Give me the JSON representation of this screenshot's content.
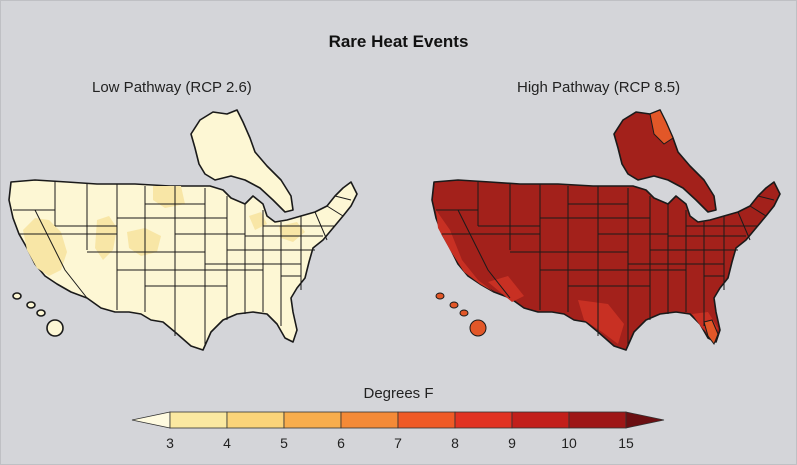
{
  "title": "Rare Heat Events",
  "panels": [
    {
      "label": "Low Pathway (RCP 2.6)",
      "palette": "light"
    },
    {
      "label": "High Pathway (RCP 8.5)",
      "palette": "dark"
    }
  ],
  "legend": {
    "title": "Degrees F",
    "ticks": [
      "3",
      "4",
      "5",
      "6",
      "7",
      "8",
      "9",
      "10",
      "15"
    ],
    "colors": [
      "#fffbe0",
      "#fbe9a1",
      "#fbd479",
      "#f8ad4c",
      "#f48a37",
      "#ef5a26",
      "#e13222",
      "#c21f1b",
      "#9e1717",
      "#6b0f12"
    ]
  },
  "colors": {
    "background": "#d4d5d9",
    "low_fill": "#fdf7d4",
    "low_patch": "#f8e6a6",
    "high_fill": "#a3211b",
    "high_patch": "#c83023",
    "high_hot": "#e25728",
    "border": "#1a1a1a"
  }
}
